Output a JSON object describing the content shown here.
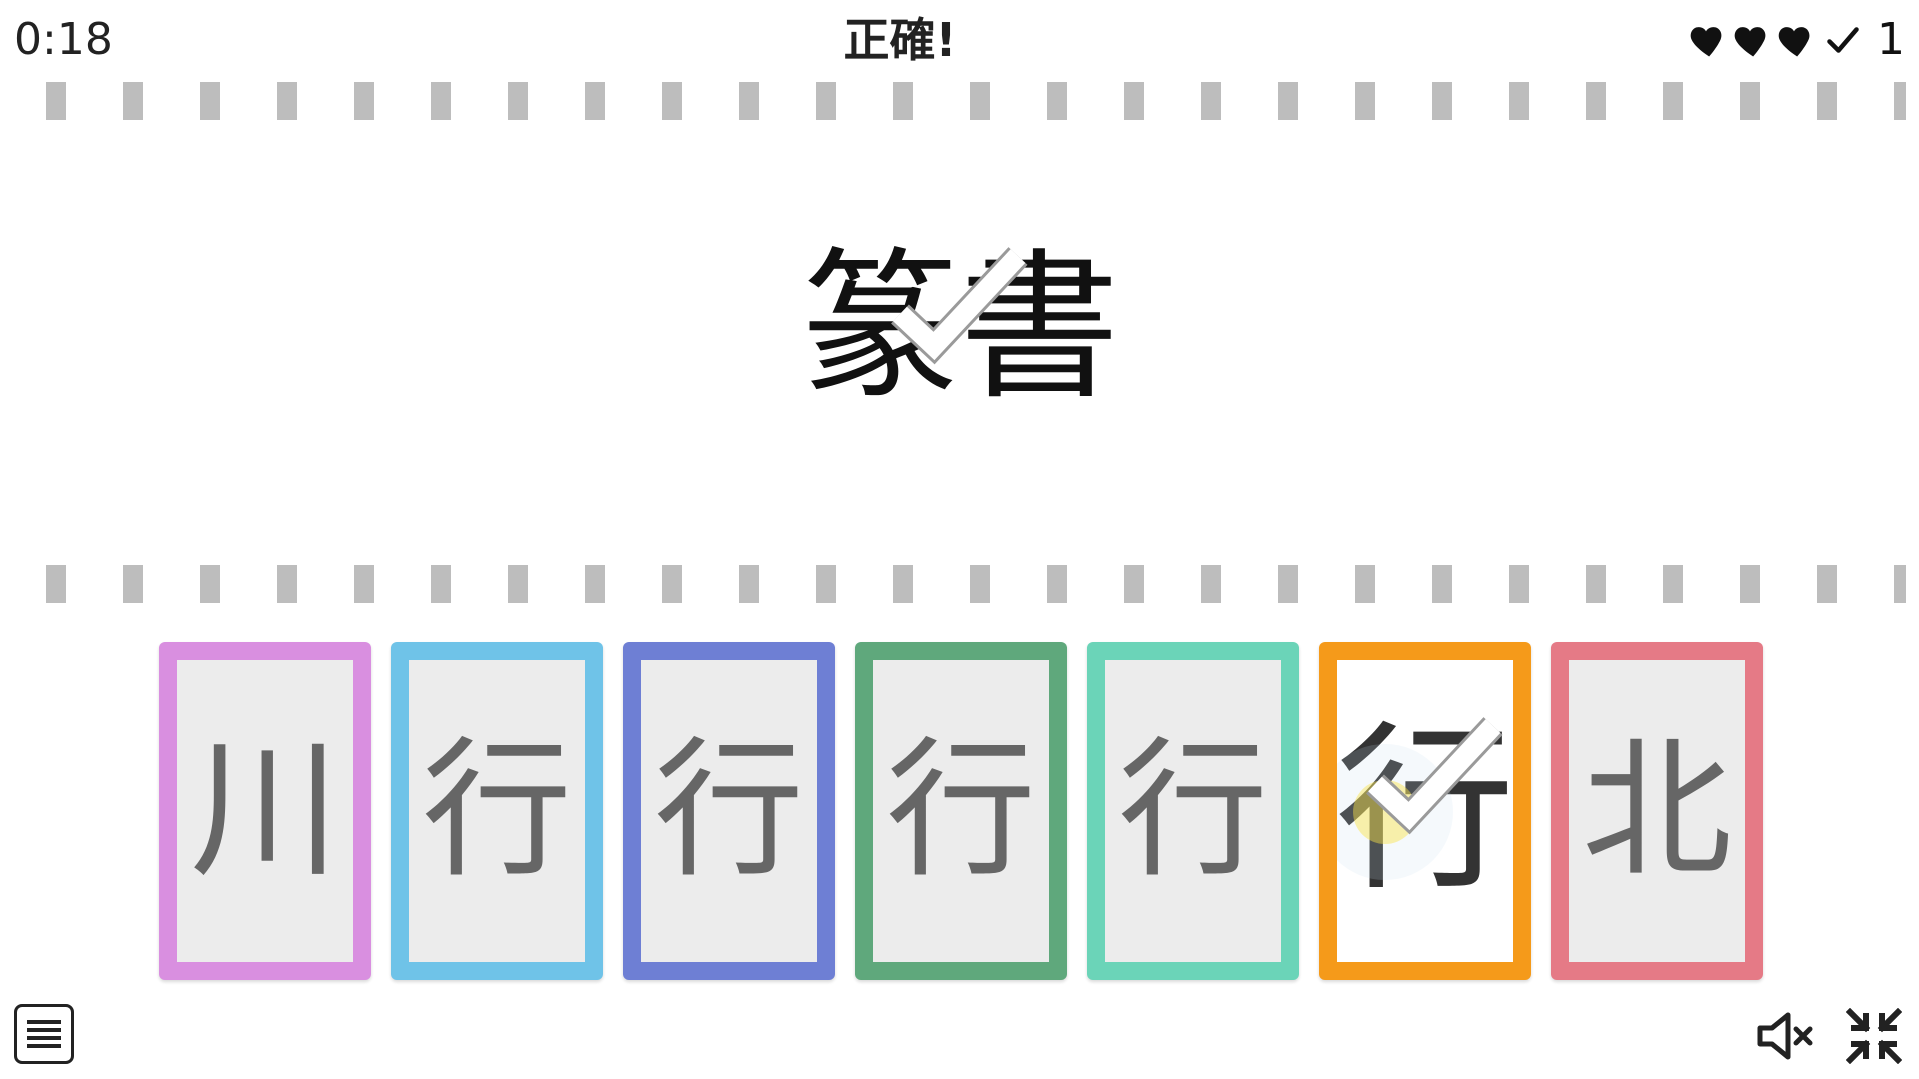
{
  "header": {
    "timer": "0:18",
    "status": "正確!",
    "lives": 3,
    "score_text": "1",
    "icons": [
      "heart-icon",
      "heart-icon",
      "heart-icon",
      "check-icon"
    ]
  },
  "prompt": {
    "text": "篆書"
  },
  "cards": [
    {
      "glyph": "川",
      "color": "#d98fe0",
      "selected": false
    },
    {
      "glyph": "行",
      "color": "#6fc3e8",
      "selected": false
    },
    {
      "glyph": "行",
      "color": "#6e7fd4",
      "selected": false
    },
    {
      "glyph": "行",
      "color": "#5fa87c",
      "selected": false
    },
    {
      "glyph": "行",
      "color": "#6bd4b8",
      "selected": false
    },
    {
      "glyph": "行",
      "color": "#f59a1a",
      "selected": true
    },
    {
      "glyph": "北",
      "color": "#e57a86",
      "selected": false
    }
  ],
  "footer": {
    "menu_icon": "hamburger-icon",
    "mute_icon": "speaker-mute-icon",
    "fullscreen_icon": "exit-fullscreen-icon"
  }
}
